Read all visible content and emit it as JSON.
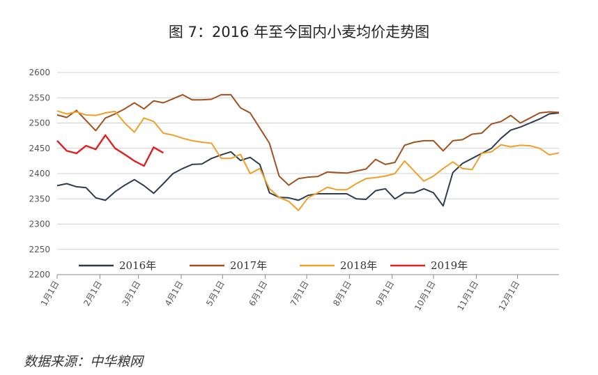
{
  "chart_data": {
    "type": "line",
    "title": "图 7：2016 年至今国内小麦均价走势图",
    "xlabel": "",
    "ylabel": "",
    "ylim": [
      2200,
      2600
    ],
    "yticks": [
      2200,
      2250,
      2300,
      2350,
      2400,
      2450,
      2500,
      2550,
      2600
    ],
    "xlim": [
      0,
      52
    ],
    "x_tick_labels": [
      "1月1日",
      "2月1日",
      "3月1日",
      "4月1日",
      "5月1日",
      "6月1日",
      "7月1日",
      "8月1日",
      "9月1日",
      "10月1日",
      "11月1日",
      "12月1日"
    ],
    "x_tick_positions": [
      0,
      4.43,
      8.43,
      12.86,
      17.14,
      21.57,
      25.86,
      30.29,
      34.71,
      39,
      43.43,
      47.71
    ],
    "grid": "horizontal",
    "legend_position": "bottom-left",
    "series": [
      {
        "name": "2016年",
        "color": "#2e3b4e",
        "x": [
          0,
          1,
          2,
          3,
          4,
          5,
          6,
          7,
          8,
          9,
          10,
          11,
          12,
          13,
          14,
          15,
          16,
          17,
          18,
          19,
          20,
          21,
          22,
          23,
          24,
          25,
          26,
          27,
          28,
          29,
          30,
          31,
          32,
          33,
          34,
          35,
          36,
          37,
          38,
          39,
          40,
          41,
          42,
          43,
          44,
          45,
          46,
          47,
          48,
          49,
          50,
          51,
          52
        ],
        "values": [
          2376,
          2380,
          2374,
          2372,
          2352,
          2347,
          2364,
          2377,
          2388,
          2376,
          2361,
          2380,
          2400,
          2410,
          2418,
          2419,
          2430,
          2437,
          2443,
          2426,
          2432,
          2418,
          2362,
          2353,
          2352,
          2347,
          2357,
          2360,
          2360,
          2360,
          2360,
          2350,
          2349,
          2366,
          2370,
          2350,
          2362,
          2362,
          2370,
          2362,
          2336,
          2402,
          2420,
          2430,
          2440,
          2450,
          2470,
          2486,
          2492,
          2500,
          2508,
          2518,
          2520
        ]
      },
      {
        "name": "2017年",
        "color": "#a1501e",
        "x": [
          0,
          1,
          2,
          3,
          4,
          5,
          6,
          7,
          8,
          9,
          10,
          11,
          12,
          13,
          14,
          15,
          16,
          17,
          18,
          19,
          20,
          21,
          22,
          23,
          24,
          25,
          26,
          27,
          28,
          29,
          30,
          31,
          32,
          33,
          34,
          35,
          36,
          37,
          38,
          39,
          40,
          41,
          42,
          43,
          44,
          45,
          46,
          47,
          48,
          49,
          50,
          51,
          52
        ],
        "values": [
          2516,
          2511,
          2525,
          2505,
          2485,
          2510,
          2518,
          2528,
          2540,
          2528,
          2544,
          2540,
          2548,
          2556,
          2546,
          2546,
          2547,
          2556,
          2556,
          2530,
          2520,
          2490,
          2460,
          2395,
          2377,
          2390,
          2393,
          2394,
          2403,
          2402,
          2401,
          2405,
          2409,
          2428,
          2418,
          2422,
          2456,
          2462,
          2465,
          2465,
          2445,
          2465,
          2467,
          2478,
          2480,
          2498,
          2503,
          2515,
          2500,
          2510,
          2520,
          2522,
          2521
        ]
      },
      {
        "name": "2018年",
        "color": "#f0a028",
        "x": [
          0,
          1,
          2,
          3,
          4,
          5,
          6,
          7,
          8,
          9,
          10,
          11,
          12,
          13,
          14,
          15,
          16,
          17,
          18,
          19,
          20,
          21,
          22,
          23,
          24,
          25,
          26,
          27,
          28,
          29,
          30,
          31,
          32,
          33,
          34,
          35,
          36,
          37,
          38,
          39,
          40,
          41,
          42,
          43,
          44,
          45,
          46,
          47,
          48,
          49,
          50,
          51,
          52
        ],
        "values": [
          2524,
          2518,
          2522,
          2516,
          2515,
          2520,
          2523,
          2500,
          2482,
          2510,
          2503,
          2480,
          2476,
          2470,
          2465,
          2462,
          2460,
          2430,
          2430,
          2438,
          2400,
          2410,
          2370,
          2353,
          2345,
          2327,
          2352,
          2362,
          2373,
          2368,
          2368,
          2380,
          2390,
          2392,
          2395,
          2400,
          2425,
          2405,
          2385,
          2395,
          2410,
          2423,
          2410,
          2408,
          2440,
          2443,
          2457,
          2453,
          2456,
          2455,
          2450,
          2437,
          2441
        ]
      },
      {
        "name": "2019年",
        "color": "#e02020",
        "x": [
          0,
          1,
          2,
          3,
          4,
          5,
          6,
          7,
          8,
          9,
          10,
          11
        ],
        "values": [
          2465,
          2445,
          2440,
          2455,
          2448,
          2476,
          2450,
          2438,
          2425,
          2415,
          2452,
          2441
        ]
      }
    ]
  }
}
